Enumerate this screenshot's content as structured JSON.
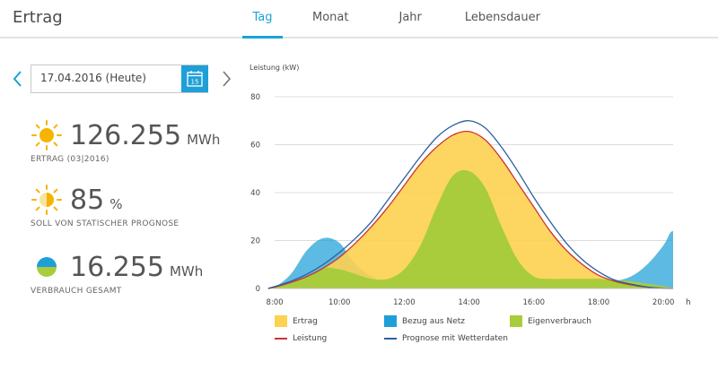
{
  "header": {
    "title": "Ertrag",
    "tabs": [
      {
        "label": "Tag",
        "active": true
      },
      {
        "label": "Monat",
        "active": false
      },
      {
        "label": "Jahr",
        "active": false
      },
      {
        "label": "Lebensdauer",
        "active": false
      }
    ]
  },
  "date_picker": {
    "value": "17.04.2016 (Heute)",
    "calendar_day": "15",
    "prev_icon": "chevron-left-icon",
    "next_icon": "chevron-right-icon"
  },
  "kpis": [
    {
      "icon": "sun-icon",
      "value": "126.255",
      "unit": "MWh",
      "label": "ERTRAG (03|2016)"
    },
    {
      "icon": "partial-sun-icon",
      "value": "85",
      "unit": "%",
      "label": "SOLL VON STATISCHER  PROGNOSE"
    },
    {
      "icon": "consumption-icon",
      "value": "16.255",
      "unit": "MWh",
      "label": "VERBRAUCH GESAMT"
    }
  ],
  "colors": {
    "accent": "#1aa2d8",
    "ertrag": "#fcd24f",
    "bezug": "#1e9fd8",
    "eigenverbrauch": "#a8cc3c",
    "leistung": "#cc3333",
    "prognose": "#2b5f9e",
    "sun": "#f5b400"
  },
  "chart_data": {
    "type": "area",
    "ylabel": "Leistung (kW)",
    "xunit": "h",
    "ylim": [
      0,
      80
    ],
    "yticks": [
      0,
      20,
      40,
      60,
      80
    ],
    "xlim": [
      8,
      20.3
    ],
    "xticks": [
      {
        "value": 8,
        "label": "8:00"
      },
      {
        "value": 10,
        "label": "10:00"
      },
      {
        "value": 12,
        "label": "12:00"
      },
      {
        "value": 14,
        "label": "14:00"
      },
      {
        "value": 16,
        "label": "16:00"
      },
      {
        "value": 18,
        "label": "18:00"
      },
      {
        "value": 20,
        "label": "20:00"
      }
    ],
    "grid": true,
    "x": [
      7.8,
      8.0,
      8.5,
      9.0,
      9.5,
      10.0,
      10.5,
      11.0,
      11.5,
      12.0,
      12.5,
      13.0,
      13.5,
      14.0,
      14.5,
      15.0,
      15.5,
      16.0,
      16.5,
      17.0,
      17.5,
      18.0,
      18.5,
      19.0,
      19.5,
      20.0,
      20.2,
      20.3
    ],
    "series": [
      {
        "name": "Bezug aus Netz",
        "style": "area",
        "values": [
          0,
          0.5,
          6,
          16,
          21,
          19,
          10,
          5,
          2,
          1,
          1,
          1,
          1,
          1,
          1,
          1,
          1,
          1,
          1,
          1,
          1,
          1.5,
          3,
          5,
          10,
          18,
          23,
          24
        ]
      },
      {
        "name": "Ertrag",
        "style": "area",
        "values": [
          0,
          0.5,
          2.5,
          5,
          8.5,
          13,
          19,
          26,
          34,
          43,
          52,
          59,
          64,
          65.5,
          62,
          54,
          44,
          34,
          24,
          16,
          10,
          5.5,
          3,
          1.5,
          0.5,
          0,
          0,
          0
        ]
      },
      {
        "name": "Eigenverbrauch",
        "style": "area",
        "values": [
          0,
          0.5,
          2.5,
          5,
          8.5,
          8,
          6,
          4,
          4,
          8,
          18,
          34,
          47,
          49,
          42,
          26,
          12,
          5,
          4,
          4,
          4,
          4,
          3.5,
          3,
          2,
          1,
          0.5,
          0
        ]
      },
      {
        "name": "Leistung",
        "style": "line",
        "values": [
          0,
          0.5,
          2.5,
          5,
          8.5,
          13,
          19,
          26,
          34,
          43,
          52,
          59,
          64,
          65.5,
          62,
          54,
          44,
          34,
          24,
          16,
          10,
          5.5,
          3,
          1.5,
          0.5,
          0,
          0,
          0
        ]
      },
      {
        "name": "Prognose mit Wetterdaten",
        "style": "line",
        "values": [
          0,
          0.8,
          3,
          6,
          10,
          15,
          21,
          28,
          37,
          46,
          55,
          63,
          68,
          70,
          67,
          59,
          49,
          38,
          28,
          19,
          12,
          7,
          3.5,
          1.8,
          0.6,
          0.1,
          0,
          0
        ]
      }
    ]
  }
}
